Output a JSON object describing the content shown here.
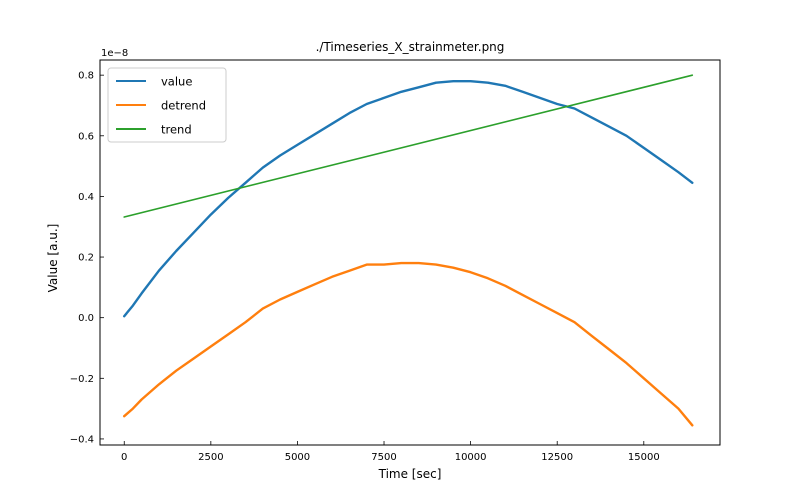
{
  "chart_data": {
    "type": "line",
    "title": "./Timeseries_X_strainmeter.png",
    "xlabel": "Time [sec]",
    "ylabel": "Value [a.u.]",
    "y_scale_label": "1e−8",
    "xlim": [
      -700,
      17200
    ],
    "ylim": [
      -0.42,
      0.85
    ],
    "xticks": [
      0,
      2500,
      5000,
      7500,
      10000,
      12500,
      15000
    ],
    "yticks": [
      -0.4,
      -0.2,
      0.0,
      0.2,
      0.4,
      0.6,
      0.8
    ],
    "ytick_labels": [
      "−0.4",
      "−0.2",
      "0.0",
      "0.2",
      "0.4",
      "0.6",
      "0.8"
    ],
    "legend_position": "upper-left",
    "series": [
      {
        "name": "value",
        "color": "#1f77b4",
        "x": [
          0,
          250,
          500,
          1000,
          1500,
          2000,
          2500,
          3000,
          3500,
          4000,
          4500,
          5000,
          5500,
          6000,
          6500,
          7000,
          7500,
          8000,
          8500,
          9000,
          9500,
          10000,
          10500,
          11000,
          11500,
          12000,
          12500,
          13000,
          13500,
          14000,
          14500,
          15000,
          15500,
          16000,
          16400
        ],
        "y": [
          0.005,
          0.04,
          0.08,
          0.155,
          0.22,
          0.28,
          0.34,
          0.395,
          0.445,
          0.495,
          0.535,
          0.57,
          0.605,
          0.64,
          0.675,
          0.705,
          0.725,
          0.745,
          0.76,
          0.775,
          0.78,
          0.78,
          0.775,
          0.765,
          0.745,
          0.725,
          0.705,
          0.69,
          0.66,
          0.63,
          0.6,
          0.56,
          0.52,
          0.48,
          0.445
        ]
      },
      {
        "name": "detrend",
        "color": "#ff7f0e",
        "x": [
          0,
          250,
          500,
          1000,
          1500,
          2000,
          2500,
          3000,
          3500,
          4000,
          4500,
          5000,
          5500,
          6000,
          6500,
          7000,
          7500,
          8000,
          8500,
          9000,
          9500,
          10000,
          10500,
          11000,
          11500,
          12000,
          12500,
          13000,
          13500,
          14000,
          14500,
          15000,
          15500,
          16000,
          16400
        ],
        "y": [
          -0.325,
          -0.3,
          -0.27,
          -0.22,
          -0.175,
          -0.135,
          -0.095,
          -0.055,
          -0.015,
          0.03,
          0.06,
          0.085,
          0.11,
          0.135,
          0.155,
          0.175,
          0.175,
          0.18,
          0.18,
          0.175,
          0.165,
          0.15,
          0.13,
          0.105,
          0.075,
          0.045,
          0.015,
          -0.015,
          -0.06,
          -0.105,
          -0.15,
          -0.2,
          -0.25,
          -0.3,
          -0.355
        ]
      },
      {
        "name": "trend",
        "color": "#2ca02c",
        "x": [
          0,
          16400
        ],
        "y": [
          0.332,
          0.8
        ]
      }
    ]
  }
}
